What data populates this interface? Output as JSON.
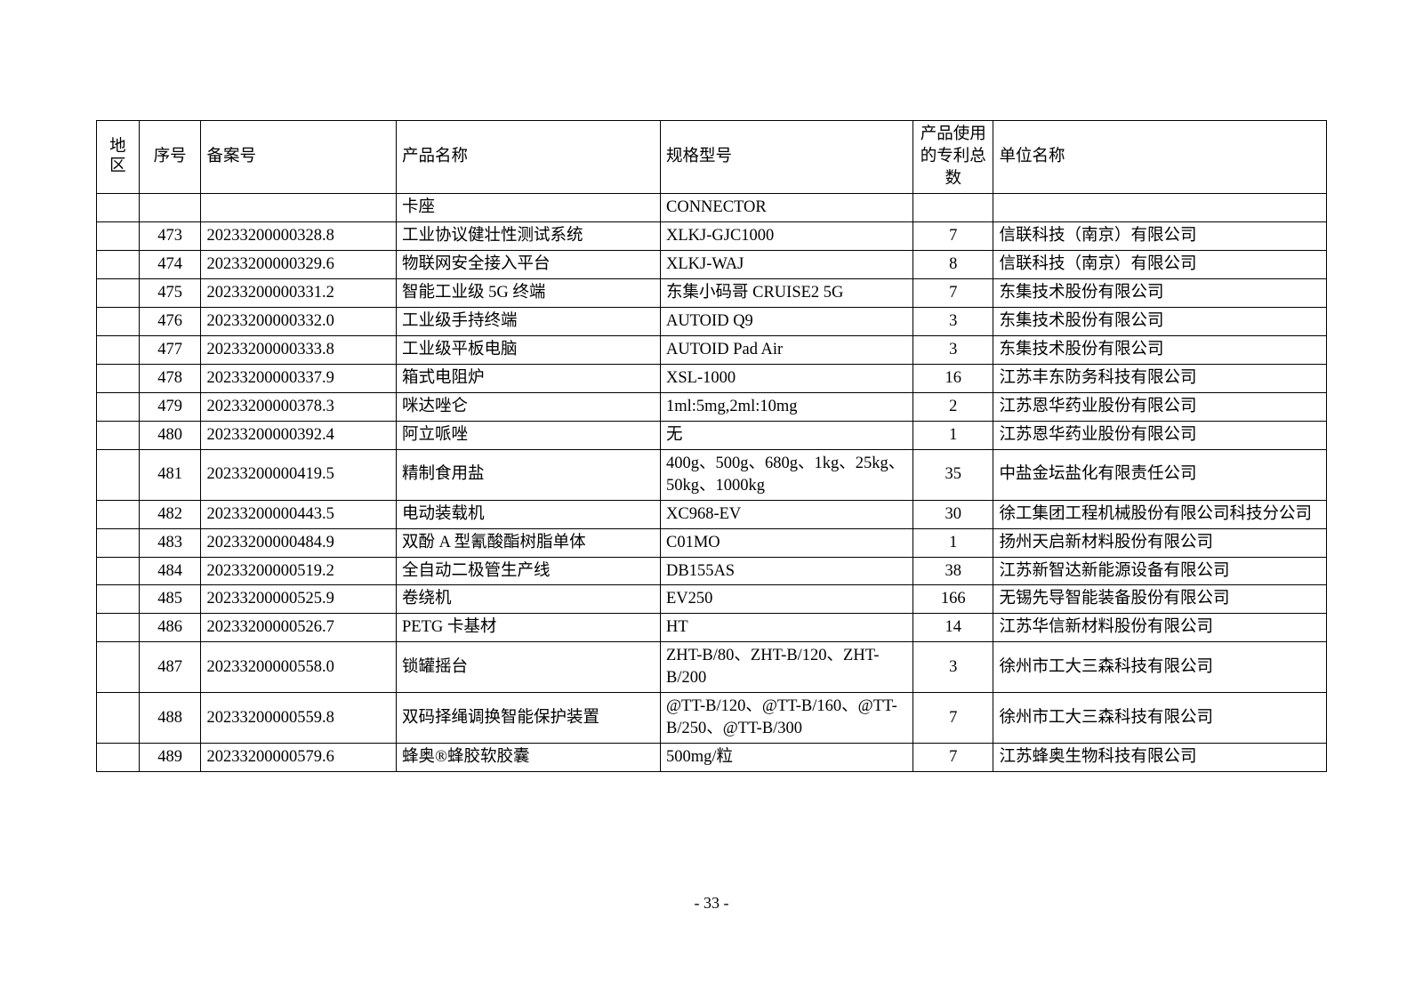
{
  "header": {
    "region": "地区",
    "sequence": "序号",
    "record_no": "备案号",
    "product": "产品名称",
    "spec": "规格型号",
    "patents": "产品使用的专利总数",
    "unit": "单位名称"
  },
  "continuation_row": {
    "product": "卡座",
    "spec": "CONNECTOR"
  },
  "rows": [
    {
      "seq": "473",
      "rec": "20233200000328.8",
      "prod": "工业协议健壮性测试系统",
      "spec": "XLKJ-GJC1000",
      "pat": "7",
      "unit": "信联科技（南京）有限公司"
    },
    {
      "seq": "474",
      "rec": "20233200000329.6",
      "prod": "物联网安全接入平台",
      "spec": "XLKJ-WAJ",
      "pat": "8",
      "unit": "信联科技（南京）有限公司"
    },
    {
      "seq": "475",
      "rec": "20233200000331.2",
      "prod": "智能工业级 5G 终端",
      "spec": "东集小码哥 CRUISE2 5G",
      "pat": "7",
      "unit": "东集技术股份有限公司"
    },
    {
      "seq": "476",
      "rec": "20233200000332.0",
      "prod": "工业级手持终端",
      "spec": "AUTOID Q9",
      "pat": "3",
      "unit": "东集技术股份有限公司"
    },
    {
      "seq": "477",
      "rec": "20233200000333.8",
      "prod": "工业级平板电脑",
      "spec": "AUTOID Pad Air",
      "pat": "3",
      "unit": "东集技术股份有限公司"
    },
    {
      "seq": "478",
      "rec": "20233200000337.9",
      "prod": "箱式电阻炉",
      "spec": "XSL-1000",
      "pat": "16",
      "unit": "江苏丰东防务科技有限公司"
    },
    {
      "seq": "479",
      "rec": "20233200000378.3",
      "prod": "咪达唑仑",
      "spec": "1ml:5mg,2ml:10mg",
      "pat": "2",
      "unit": "江苏恩华药业股份有限公司"
    },
    {
      "seq": "480",
      "rec": "20233200000392.4",
      "prod": "阿立哌唑",
      "spec": "无",
      "pat": "1",
      "unit": "江苏恩华药业股份有限公司"
    },
    {
      "seq": "481",
      "rec": "20233200000419.5",
      "prod": "精制食用盐",
      "spec": "400g、500g、680g、1kg、25kg、50kg、1000kg",
      "pat": "35",
      "unit": "中盐金坛盐化有限责任公司"
    },
    {
      "seq": "482",
      "rec": "20233200000443.5",
      "prod": "电动装载机",
      "spec": "XC968-EV",
      "pat": "30",
      "unit": "徐工集团工程机械股份有限公司科技分公司"
    },
    {
      "seq": "483",
      "rec": "20233200000484.9",
      "prod": "双酚 A 型氰酸酯树脂单体",
      "spec": "C01MO",
      "pat": "1",
      "unit": "扬州天启新材料股份有限公司"
    },
    {
      "seq": "484",
      "rec": "20233200000519.2",
      "prod": "全自动二极管生产线",
      "spec": "DB155AS",
      "pat": "38",
      "unit": "江苏新智达新能源设备有限公司"
    },
    {
      "seq": "485",
      "rec": "20233200000525.9",
      "prod": "卷绕机",
      "spec": "EV250",
      "pat": "166",
      "unit": "无锡先导智能装备股份有限公司"
    },
    {
      "seq": "486",
      "rec": "20233200000526.7",
      "prod": "PETG 卡基材",
      "spec": "HT",
      "pat": "14",
      "unit": "江苏华信新材料股份有限公司"
    },
    {
      "seq": "487",
      "rec": "20233200000558.0",
      "prod": "锁罐摇台",
      "spec": "ZHT-B/80、ZHT-B/120、ZHT-B/200",
      "pat": "3",
      "unit": "徐州市工大三森科技有限公司"
    },
    {
      "seq": "488",
      "rec": "20233200000559.8",
      "prod": "双码择绳调换智能保护装置",
      "spec": "@TT-B/120、@TT-B/160、@TT-B/250、@TT-B/300",
      "pat": "7",
      "unit": "徐州市工大三森科技有限公司"
    },
    {
      "seq": "489",
      "rec": "20233200000579.6",
      "prod": "蜂奥®蜂胶软胶囊",
      "spec": "500mg/粒",
      "pat": "7",
      "unit": "江苏蜂奥生物科技有限公司"
    }
  ],
  "page_number": "- 33 -"
}
